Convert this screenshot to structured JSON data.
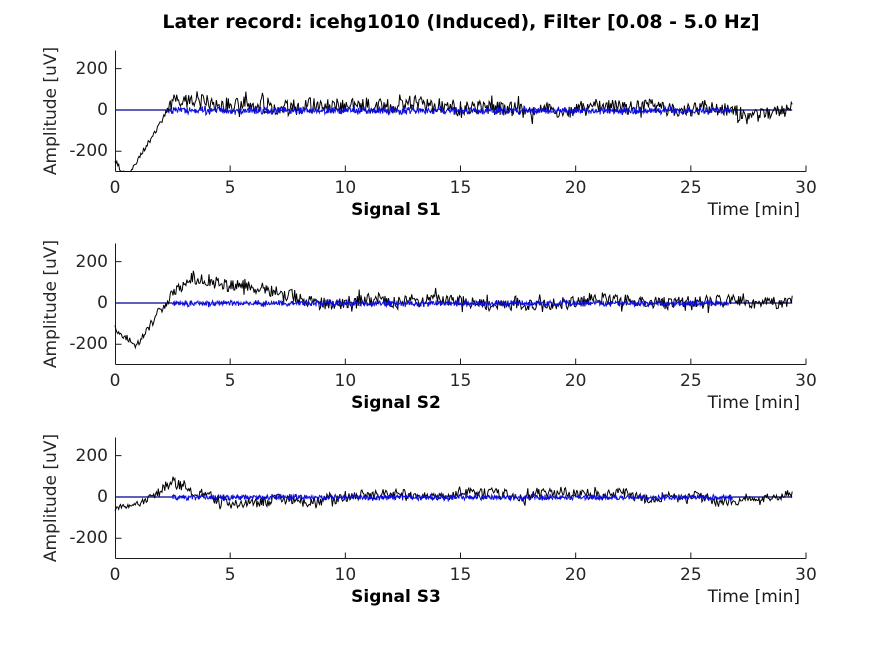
{
  "figure": {
    "title": "Later record: icehg1010 (Induced), Filter [0.08 - 5.0 Hz]",
    "background": "#ffffff"
  },
  "colors": {
    "raw_signal": "#000000",
    "filtered_signal": "#0d0ddd",
    "baseline": "#00008f",
    "axis": "#1a1a1a",
    "text": "#262626"
  },
  "chart_data": [
    {
      "type": "line",
      "xlabel": "Signal S1",
      "xlabel_right": "Time [min]",
      "ylabel": "Amplitude [uV]",
      "xlim": [
        0,
        30
      ],
      "ylim": [
        -300,
        290
      ],
      "xticks": [
        0,
        5,
        10,
        15,
        20,
        25,
        30
      ],
      "yticks": [
        200,
        0,
        -200
      ],
      "x_end": 29.4,
      "grid": false,
      "series": [
        {
          "name": "raw-signal",
          "color": "#000000",
          "seed": 101,
          "mean": [
            [
              0,
              -250
            ],
            [
              0.5,
              -300
            ],
            [
              1,
              -230
            ],
            [
              1.5,
              -160
            ],
            [
              2,
              -70
            ],
            [
              2.3,
              -10
            ],
            [
              2.6,
              30
            ],
            [
              3.5,
              45
            ],
            [
              5,
              40
            ],
            [
              7,
              30
            ],
            [
              9,
              20
            ],
            [
              12,
              12
            ],
            [
              16,
              10
            ],
            [
              20,
              10
            ],
            [
              24,
              8
            ],
            [
              26.5,
              5
            ],
            [
              27.6,
              -35
            ],
            [
              28.4,
              -20
            ],
            [
              29.4,
              -5
            ]
          ],
          "amp": [
            [
              0,
              12
            ],
            [
              2,
              14
            ],
            [
              2.6,
              40
            ],
            [
              6,
              38
            ],
            [
              12,
              36
            ],
            [
              20,
              36
            ],
            [
              27,
              34
            ],
            [
              29.4,
              30
            ]
          ]
        },
        {
          "name": "filtered-signal",
          "color": "#0d0ddd",
          "seed": 202,
          "flat_start": 2.25,
          "noise_end": 26.8,
          "flat_end": 29.4,
          "amp": 17,
          "offset": -3
        }
      ]
    },
    {
      "type": "line",
      "xlabel": "Signal S2",
      "xlabel_right": "Time [min]",
      "ylabel": "Amplitude [uV]",
      "xlim": [
        0,
        30
      ],
      "ylim": [
        -300,
        290
      ],
      "xticks": [
        0,
        5,
        10,
        15,
        20,
        25,
        30
      ],
      "yticks": [
        200,
        0,
        -200
      ],
      "x_end": 29.4,
      "grid": false,
      "series": [
        {
          "name": "raw-signal",
          "color": "#000000",
          "seed": 103,
          "mean": [
            [
              0,
              -120
            ],
            [
              0.4,
              -160
            ],
            [
              0.9,
              -195
            ],
            [
              1.3,
              -150
            ],
            [
              1.7,
              -80
            ],
            [
              2.1,
              -10
            ],
            [
              2.7,
              70
            ],
            [
              3.4,
              115
            ],
            [
              4.2,
              95
            ],
            [
              5,
              75
            ],
            [
              6,
              60
            ],
            [
              7,
              45
            ],
            [
              8.5,
              30
            ],
            [
              10,
              15
            ],
            [
              12,
              8
            ],
            [
              16,
              5
            ],
            [
              20,
              5
            ],
            [
              24,
              2
            ],
            [
              26.5,
              0
            ],
            [
              27.5,
              -5
            ],
            [
              29.4,
              -10
            ]
          ],
          "amp": [
            [
              0,
              15
            ],
            [
              2,
              18
            ],
            [
              3,
              30
            ],
            [
              6,
              28
            ],
            [
              10,
              32
            ],
            [
              20,
              30
            ],
            [
              29.4,
              28
            ]
          ]
        },
        {
          "name": "filtered-signal",
          "color": "#0d0ddd",
          "seed": 204,
          "flat_start": 2.5,
          "noise_end": 26.7,
          "flat_end": 29.4,
          "amp": 14,
          "offset": -2
        }
      ]
    },
    {
      "type": "line",
      "xlabel": "Signal S3",
      "xlabel_right": "Time [min]",
      "ylabel": "Amplitude [uV]",
      "xlim": [
        0,
        30
      ],
      "ylim": [
        -300,
        290
      ],
      "xticks": [
        0,
        5,
        10,
        15,
        20,
        25,
        30
      ],
      "yticks": [
        200,
        0,
        -200
      ],
      "x_end": 29.4,
      "grid": false,
      "series": [
        {
          "name": "raw-signal",
          "color": "#000000",
          "seed": 105,
          "mean": [
            [
              0,
              -60
            ],
            [
              0.8,
              -40
            ],
            [
              1.2,
              -20
            ],
            [
              1.6,
              10
            ],
            [
              2.0,
              45
            ],
            [
              2.4,
              85
            ],
            [
              2.9,
              60
            ],
            [
              3.6,
              25
            ],
            [
              4.3,
              0
            ],
            [
              5.3,
              -20
            ],
            [
              6.3,
              -28
            ],
            [
              7.3,
              -15
            ],
            [
              8.3,
              0
            ],
            [
              9.3,
              12
            ],
            [
              11,
              5
            ],
            [
              14,
              0
            ],
            [
              18,
              3
            ],
            [
              22,
              0
            ],
            [
              26,
              -5
            ],
            [
              27.8,
              -18
            ],
            [
              29.4,
              -5
            ]
          ],
          "amp": [
            [
              0,
              10
            ],
            [
              1.5,
              14
            ],
            [
              2.2,
              30
            ],
            [
              4,
              26
            ],
            [
              6,
              24
            ],
            [
              10,
              25
            ],
            [
              14,
              20
            ],
            [
              18,
              23
            ],
            [
              24,
              22
            ],
            [
              29.4,
              20
            ]
          ]
        },
        {
          "name": "filtered-signal",
          "color": "#0d0ddd",
          "seed": 206,
          "flat_start": 2.5,
          "noise_end": 26.8,
          "flat_end": 29.4,
          "amp": 13,
          "offset": -2
        }
      ]
    }
  ]
}
